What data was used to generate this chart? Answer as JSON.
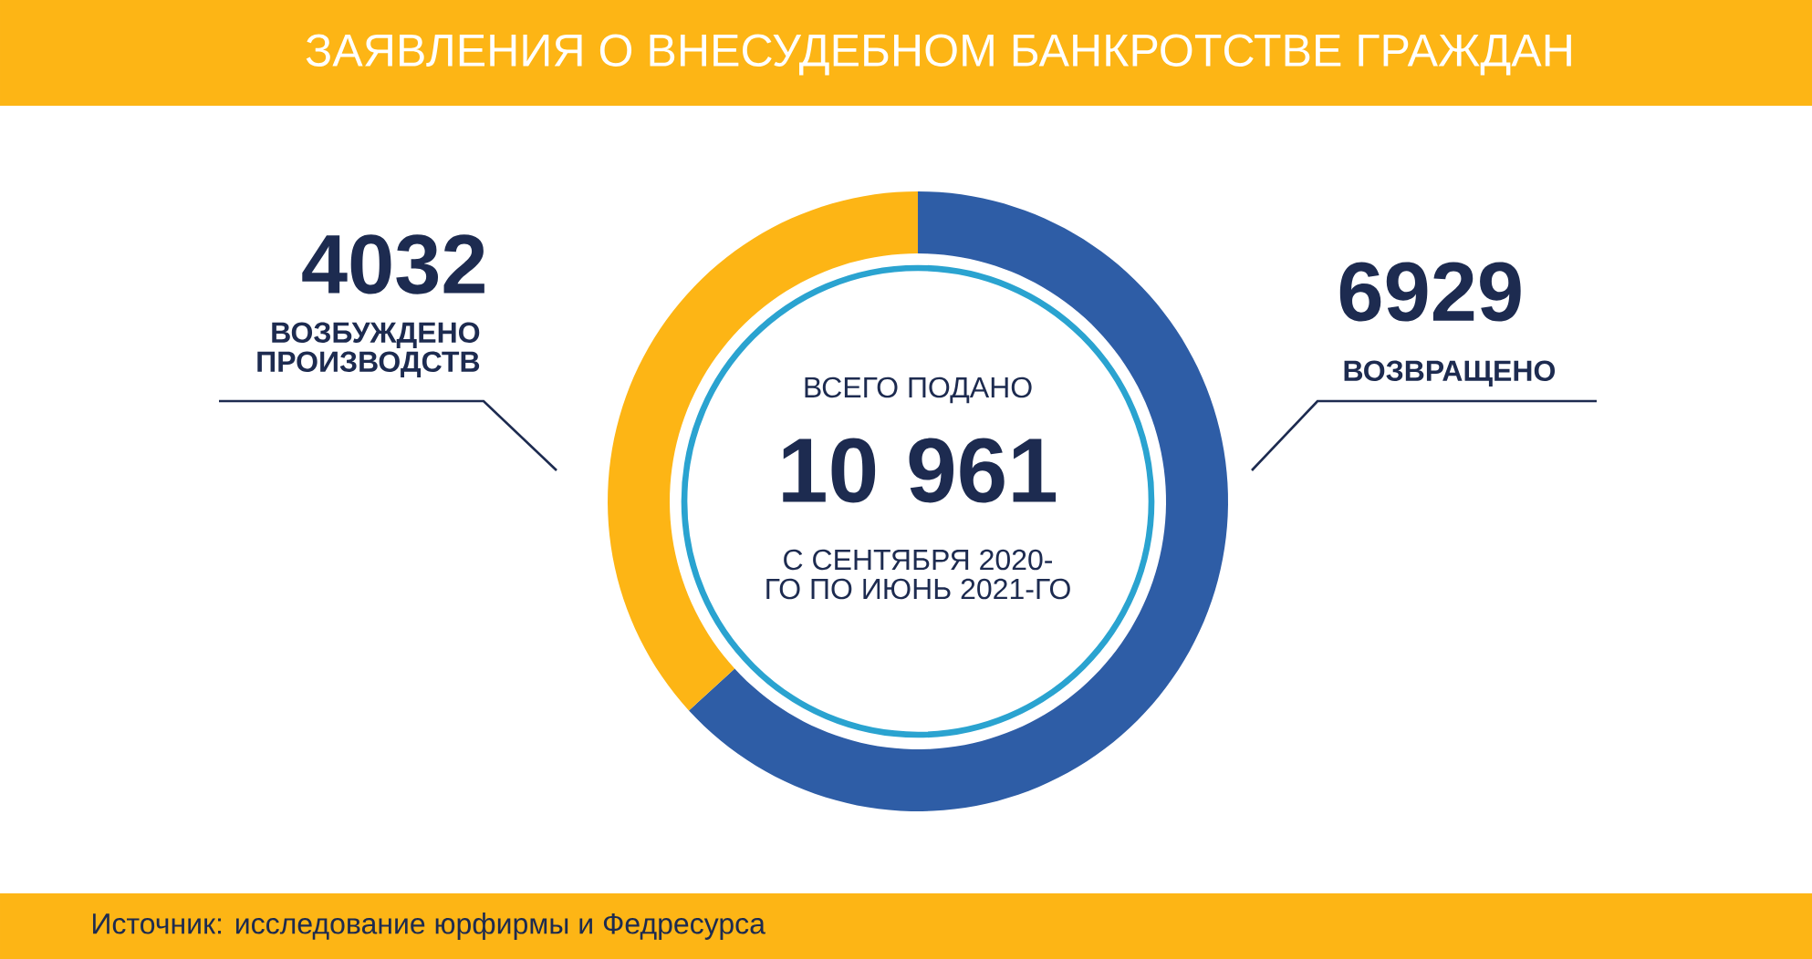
{
  "chart_data": {
    "type": "donut",
    "title": "ЗАЯВЛЕНИЯ О ВНЕСУДЕБНОМ БАНКРОТСТВЕ ГРАЖДАН",
    "categories": [
      "ВОЗВРАЩЕНО",
      "ВОЗБУЖДЕНО ПРОИЗВОДСТВ"
    ],
    "values": [
      6929,
      4032
    ],
    "colors": [
      "#2e5da6",
      "#fdb515"
    ],
    "data_labels": true,
    "annotations": [
      "ВСЕГО ПОДАНО",
      "10 961",
      "С СЕНТЯБРЯ 2020-ГО ПО ИЮНЬ 2021-ГО",
      "Источник: исследование юрфирмы и Федресурса"
    ]
  }
}
